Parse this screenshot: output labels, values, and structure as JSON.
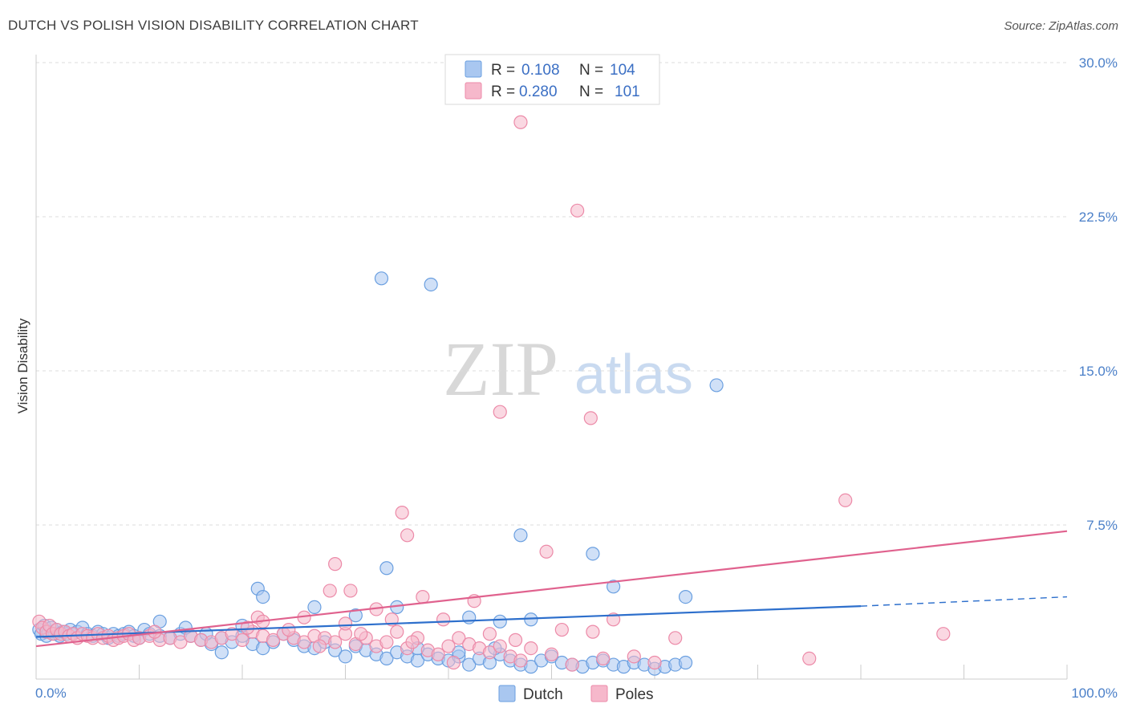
{
  "title": "DUTCH VS POLISH VISION DISABILITY CORRELATION CHART",
  "source": "Source: ZipAtlas.com",
  "watermark": {
    "zip": "ZIP",
    "atlas": "atlas"
  },
  "chart_data": {
    "type": "scatter",
    "ylabel": "Vision Disability",
    "xlim": [
      0,
      100
    ],
    "ylim": [
      0,
      30
    ],
    "y_ticks": [
      {
        "value": 7.5,
        "label": "7.5%"
      },
      {
        "value": 15.0,
        "label": "15.0%"
      },
      {
        "value": 22.5,
        "label": "22.5%"
      },
      {
        "value": 30.0,
        "label": "30.0%"
      }
    ],
    "x_tick_labels": {
      "min": "0.0%",
      "max": "100.0%"
    },
    "grid": "horizontal dashed",
    "legend_stats": [
      {
        "r_label": "R =",
        "r_value": "0.108",
        "n_label": "N =",
        "n_value": "104",
        "color": "#a9c7f0"
      },
      {
        "r_label": "R =",
        "r_value": "0.280",
        "n_label": "N =",
        "n_value": "101",
        "color": "#f6b8cb"
      }
    ],
    "series": [
      {
        "name": "Dutch",
        "fill": "#a9c7f0",
        "stroke": "#6a9fe0",
        "trend_color": "#2d6fcc",
        "trend": {
          "x0": 0,
          "y0": 2.05,
          "x1": 80,
          "y1": 3.55,
          "dash_to": 100,
          "dash_y": 4.0
        },
        "points": [
          [
            0.3,
            2.4
          ],
          [
            0.5,
            2.2
          ],
          [
            0.8,
            2.6
          ],
          [
            1.0,
            2.1
          ],
          [
            1.2,
            2.3
          ],
          [
            1.5,
            2.5
          ],
          [
            1.8,
            2.2
          ],
          [
            2.0,
            2.4
          ],
          [
            2.3,
            2.1
          ],
          [
            2.6,
            2.3
          ],
          [
            3.0,
            2.2
          ],
          [
            3.3,
            2.4
          ],
          [
            3.6,
            2.2
          ],
          [
            4.0,
            2.3
          ],
          [
            4.5,
            2.5
          ],
          [
            5.0,
            2.2
          ],
          [
            5.5,
            2.1
          ],
          [
            6.0,
            2.3
          ],
          [
            6.5,
            2.2
          ],
          [
            7.0,
            2.0
          ],
          [
            7.5,
            2.2
          ],
          [
            8.0,
            2.1
          ],
          [
            8.5,
            2.2
          ],
          [
            9.0,
            2.3
          ],
          [
            9.5,
            2.1
          ],
          [
            10.0,
            2.0
          ],
          [
            10.5,
            2.4
          ],
          [
            11.0,
            2.2
          ],
          [
            12.0,
            2.1
          ],
          [
            13.0,
            2.0
          ],
          [
            14.0,
            2.2
          ],
          [
            15.0,
            2.1
          ],
          [
            16.0,
            1.9
          ],
          [
            17.0,
            1.7
          ],
          [
            18.0,
            2.0
          ],
          [
            19.0,
            1.8
          ],
          [
            20.0,
            2.1
          ],
          [
            21.0,
            1.7
          ],
          [
            22.0,
            1.5
          ],
          [
            23.0,
            1.8
          ],
          [
            24.0,
            2.2
          ],
          [
            25.0,
            1.9
          ],
          [
            26.0,
            1.6
          ],
          [
            27.0,
            1.5
          ],
          [
            28.0,
            1.8
          ],
          [
            29.0,
            1.4
          ],
          [
            30.0,
            1.1
          ],
          [
            31.0,
            1.6
          ],
          [
            32.0,
            1.4
          ],
          [
            33.0,
            1.2
          ],
          [
            34.0,
            1.0
          ],
          [
            35.0,
            1.3
          ],
          [
            36.0,
            1.1
          ],
          [
            37.0,
            0.9
          ],
          [
            38.0,
            1.2
          ],
          [
            39.0,
            1.0
          ],
          [
            40.0,
            0.9
          ],
          [
            41.0,
            1.1
          ],
          [
            42.0,
            0.7
          ],
          [
            43.0,
            1.0
          ],
          [
            44.0,
            0.8
          ],
          [
            45.0,
            1.2
          ],
          [
            46.0,
            0.9
          ],
          [
            47.0,
            0.7
          ],
          [
            48.0,
            0.6
          ],
          [
            49.0,
            0.9
          ],
          [
            50.0,
            1.1
          ],
          [
            51.0,
            0.8
          ],
          [
            52.0,
            0.7
          ],
          [
            53.0,
            0.6
          ],
          [
            54.0,
            0.8
          ],
          [
            55.0,
            0.9
          ],
          [
            56.0,
            0.7
          ],
          [
            57.0,
            0.6
          ],
          [
            58.0,
            0.8
          ],
          [
            59.0,
            0.7
          ],
          [
            60.0,
            0.5
          ],
          [
            61.0,
            0.6
          ],
          [
            62.0,
            0.7
          ],
          [
            63.0,
            0.8
          ],
          [
            33.5,
            19.5
          ],
          [
            38.3,
            19.2
          ],
          [
            66.0,
            14.3
          ],
          [
            47.0,
            7.0
          ],
          [
            54.0,
            6.1
          ],
          [
            34.0,
            5.4
          ],
          [
            21.5,
            4.4
          ],
          [
            22.0,
            4.0
          ],
          [
            27.0,
            3.5
          ],
          [
            31.0,
            3.1
          ],
          [
            35.0,
            3.5
          ],
          [
            42.0,
            3.0
          ],
          [
            45.0,
            2.8
          ],
          [
            48.0,
            2.9
          ],
          [
            56.0,
            4.5
          ],
          [
            63.0,
            4.0
          ],
          [
            12.0,
            2.8
          ],
          [
            14.5,
            2.5
          ],
          [
            16.5,
            2.2
          ],
          [
            20.0,
            2.6
          ],
          [
            37.0,
            1.5
          ],
          [
            41.0,
            1.3
          ],
          [
            44.5,
            1.5
          ],
          [
            18.0,
            1.3
          ]
        ]
      },
      {
        "name": "Poles",
        "fill": "#f6b8cb",
        "stroke": "#ec8aa8",
        "trend_color": "#e0628e",
        "trend": {
          "x0": 0,
          "y0": 1.6,
          "x1": 100,
          "y1": 7.2
        },
        "points": [
          [
            0.3,
            2.8
          ],
          [
            0.6,
            2.5
          ],
          [
            1.0,
            2.3
          ],
          [
            1.3,
            2.6
          ],
          [
            1.6,
            2.2
          ],
          [
            2.0,
            2.4
          ],
          [
            2.4,
            2.2
          ],
          [
            2.8,
            2.3
          ],
          [
            3.2,
            2.1
          ],
          [
            3.6,
            2.2
          ],
          [
            4.0,
            2.0
          ],
          [
            4.5,
            2.2
          ],
          [
            5.0,
            2.1
          ],
          [
            5.5,
            2.0
          ],
          [
            6.0,
            2.2
          ],
          [
            6.5,
            2.0
          ],
          [
            7.0,
            2.1
          ],
          [
            7.5,
            1.9
          ],
          [
            8.0,
            2.0
          ],
          [
            8.5,
            2.1
          ],
          [
            9.0,
            2.2
          ],
          [
            9.5,
            1.9
          ],
          [
            10.0,
            2.0
          ],
          [
            11.0,
            2.1
          ],
          [
            12.0,
            1.9
          ],
          [
            13.0,
            2.0
          ],
          [
            14.0,
            1.8
          ],
          [
            15.0,
            2.1
          ],
          [
            16.0,
            1.9
          ],
          [
            17.0,
            1.8
          ],
          [
            18.0,
            2.0
          ],
          [
            19.0,
            2.2
          ],
          [
            20.0,
            1.9
          ],
          [
            21.0,
            2.3
          ],
          [
            22.0,
            2.1
          ],
          [
            23.0,
            1.9
          ],
          [
            24.0,
            2.2
          ],
          [
            25.0,
            2.0
          ],
          [
            26.0,
            1.8
          ],
          [
            27.0,
            2.1
          ],
          [
            28.0,
            2.0
          ],
          [
            29.0,
            1.8
          ],
          [
            30.0,
            2.2
          ],
          [
            31.0,
            1.7
          ],
          [
            32.0,
            2.0
          ],
          [
            33.0,
            1.6
          ],
          [
            34.0,
            1.8
          ],
          [
            35.0,
            2.3
          ],
          [
            36.0,
            1.5
          ],
          [
            37.0,
            2.0
          ],
          [
            38.0,
            1.4
          ],
          [
            39.0,
            1.2
          ],
          [
            40.0,
            1.6
          ],
          [
            41.0,
            2.0
          ],
          [
            42.0,
            1.7
          ],
          [
            43.0,
            1.5
          ],
          [
            44.0,
            1.3
          ],
          [
            45.0,
            1.6
          ],
          [
            46.0,
            1.1
          ],
          [
            47.0,
            0.9
          ],
          [
            48.0,
            1.5
          ],
          [
            50.0,
            1.2
          ],
          [
            52.0,
            0.7
          ],
          [
            55.0,
            1.0
          ],
          [
            58.0,
            1.1
          ],
          [
            60.0,
            0.8
          ],
          [
            47.0,
            27.1
          ],
          [
            52.5,
            22.8
          ],
          [
            45.0,
            13.0
          ],
          [
            53.8,
            12.7
          ],
          [
            78.5,
            8.7
          ],
          [
            35.5,
            8.1
          ],
          [
            36.0,
            7.0
          ],
          [
            49.5,
            6.2
          ],
          [
            29.0,
            5.6
          ],
          [
            28.5,
            4.3
          ],
          [
            30.5,
            4.3
          ],
          [
            37.5,
            4.0
          ],
          [
            42.5,
            3.8
          ],
          [
            33.0,
            3.4
          ],
          [
            21.5,
            3.0
          ],
          [
            22.0,
            2.8
          ],
          [
            26.0,
            3.0
          ],
          [
            30.0,
            2.7
          ],
          [
            34.5,
            2.9
          ],
          [
            39.5,
            2.9
          ],
          [
            51.0,
            2.4
          ],
          [
            54.0,
            2.3
          ],
          [
            56.0,
            2.9
          ],
          [
            62.0,
            2.0
          ],
          [
            75.0,
            1.0
          ],
          [
            88.0,
            2.2
          ],
          [
            20.5,
            2.5
          ],
          [
            44.0,
            2.2
          ],
          [
            46.5,
            1.9
          ],
          [
            11.5,
            2.3
          ],
          [
            24.5,
            2.4
          ],
          [
            27.5,
            1.6
          ],
          [
            31.5,
            2.2
          ],
          [
            36.5,
            1.8
          ],
          [
            40.5,
            0.8
          ]
        ]
      }
    ]
  }
}
